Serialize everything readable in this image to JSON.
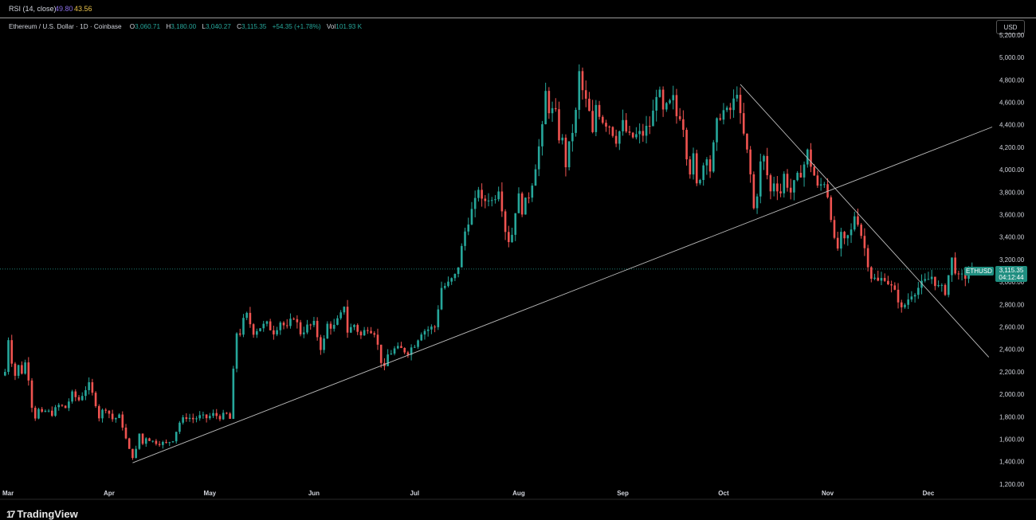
{
  "rsi": {
    "label": "RSI (14, close)",
    "value1": "49.80",
    "value2": "43.56",
    "color1": "#8a6ee6",
    "color2": "#e8c14a"
  },
  "legend": {
    "symbol": "Ethereum / U.S. Dollar · 1D · Coinbase",
    "open_k": "O",
    "open": "3,060.71",
    "high_k": "H",
    "high": "3,180.00",
    "low_k": "L",
    "low": "3,040.27",
    "close_k": "C",
    "close": "3,115.35",
    "change": "+54.35 (+1.78%)",
    "vol_k": "Vol",
    "vol": "101.93 K"
  },
  "currency_button": "USD",
  "price_tag": {
    "symbol": "ETHUSD",
    "price": "3,115.35",
    "countdown": "04:12:44"
  },
  "branding": {
    "logo": "17",
    "name": "TradingView"
  },
  "colors": {
    "up": "#26a69a",
    "down": "#ef5350",
    "trendline": "#bdbdbd",
    "background": "#000000"
  },
  "chart_data": {
    "type": "candlestick",
    "y_ticks": [
      "5,200.00",
      "5,000.00",
      "4,800.00",
      "4,600.00",
      "4,400.00",
      "4,200.00",
      "4,000.00",
      "3,800.00",
      "3,600.00",
      "3,400.00",
      "3,200.00",
      "3,000.00",
      "2,800.00",
      "2,600.00",
      "2,400.00",
      "2,200.00",
      "2,000.00",
      "1,800.00",
      "1,600.00",
      "1,400.00",
      "1,200.00"
    ],
    "ylim": [
      1150,
      5270
    ],
    "x_ticks": [
      {
        "label": "Mar",
        "day": -1
      },
      {
        "label": "Apr",
        "day": 31
      },
      {
        "label": "May",
        "day": 61
      },
      {
        "label": "Jun",
        "day": 92
      },
      {
        "label": "Jul",
        "day": 122
      },
      {
        "label": "Aug",
        "day": 153
      },
      {
        "label": "Sep",
        "day": 184
      },
      {
        "label": "Oct",
        "day": 214
      },
      {
        "label": "Nov",
        "day": 245
      },
      {
        "label": "Dec",
        "day": 275
      }
    ],
    "day_range": [
      -1.5,
      294
    ],
    "current_price": 3115.35,
    "trendlines": [
      {
        "from": [
          38,
          1390
        ],
        "to": [
          294,
          4380
        ]
      },
      {
        "from": [
          219,
          4760
        ],
        "to": [
          293,
          2330
        ]
      }
    ],
    "anchors": [
      [
        0,
        2200
      ],
      [
        1,
        2500
      ],
      [
        2,
        2300
      ],
      [
        3,
        2170
      ],
      [
        4,
        2250
      ],
      [
        5,
        2200
      ],
      [
        6,
        2280
      ],
      [
        7,
        2150
      ],
      [
        8,
        1900
      ],
      [
        9,
        1800
      ],
      [
        10,
        1860
      ],
      [
        11,
        1820
      ],
      [
        12,
        1850
      ],
      [
        14,
        1830
      ],
      [
        16,
        1900
      ],
      [
        18,
        1880
      ],
      [
        20,
        2000
      ],
      [
        22,
        1950
      ],
      [
        24,
        2050
      ],
      [
        25,
        2080
      ],
      [
        26,
        2000
      ],
      [
        27,
        1920
      ],
      [
        28,
        1800
      ],
      [
        29,
        1850
      ],
      [
        30,
        1880
      ],
      [
        32,
        1780
      ],
      [
        34,
        1800
      ],
      [
        35,
        1720
      ],
      [
        36,
        1600
      ],
      [
        37,
        1500
      ],
      [
        38,
        1450
      ],
      [
        39,
        1500
      ],
      [
        40,
        1650
      ],
      [
        41,
        1560
      ],
      [
        42,
        1620
      ],
      [
        44,
        1580
      ],
      [
        46,
        1570
      ],
      [
        48,
        1560
      ],
      [
        50,
        1600
      ],
      [
        52,
        1750
      ],
      [
        54,
        1800
      ],
      [
        56,
        1780
      ],
      [
        58,
        1800
      ],
      [
        60,
        1790
      ],
      [
        62,
        1820
      ],
      [
        64,
        1800
      ],
      [
        66,
        1820
      ],
      [
        67,
        1780
      ],
      [
        68,
        2200
      ],
      [
        69,
        2550
      ],
      [
        70,
        2550
      ],
      [
        71,
        2650
      ],
      [
        72,
        2700
      ],
      [
        74,
        2560
      ],
      [
        76,
        2600
      ],
      [
        78,
        2620
      ],
      [
        80,
        2560
      ],
      [
        82,
        2650
      ],
      [
        84,
        2580
      ],
      [
        86,
        2700
      ],
      [
        88,
        2550
      ],
      [
        90,
        2600
      ],
      [
        92,
        2620
      ],
      [
        94,
        2420
      ],
      [
        95,
        2480
      ],
      [
        96,
        2620
      ],
      [
        98,
        2600
      ],
      [
        100,
        2700
      ],
      [
        101,
        2800
      ],
      [
        102,
        2560
      ],
      [
        104,
        2620
      ],
      [
        106,
        2520
      ],
      [
        108,
        2600
      ],
      [
        110,
        2560
      ],
      [
        112,
        2300
      ],
      [
        113,
        2220
      ],
      [
        114,
        2350
      ],
      [
        116,
        2400
      ],
      [
        118,
        2400
      ],
      [
        120,
        2380
      ],
      [
        122,
        2450
      ],
      [
        124,
        2560
      ],
      [
        126,
        2580
      ],
      [
        128,
        2600
      ],
      [
        130,
        2950
      ],
      [
        132,
        2980
      ],
      [
        134,
        3050
      ],
      [
        135,
        3150
      ],
      [
        136,
        3300
      ],
      [
        137,
        3450
      ],
      [
        138,
        3560
      ],
      [
        140,
        3700
      ],
      [
        141,
        3850
      ],
      [
        142,
        3700
      ],
      [
        144,
        3760
      ],
      [
        145,
        3720
      ],
      [
        146,
        3780
      ],
      [
        147,
        3850
      ],
      [
        148,
        3680
      ],
      [
        149,
        3470
      ],
      [
        150,
        3380
      ],
      [
        151,
        3430
      ],
      [
        152,
        3650
      ],
      [
        153,
        3750
      ],
      [
        154,
        3650
      ],
      [
        155,
        3700
      ],
      [
        156,
        3780
      ],
      [
        157,
        3900
      ],
      [
        158,
        4050
      ],
      [
        159,
        4200
      ],
      [
        160,
        4350
      ],
      [
        161,
        4680
      ],
      [
        162,
        4550
      ],
      [
        164,
        4480
      ],
      [
        165,
        4300
      ],
      [
        166,
        4250
      ],
      [
        167,
        4050
      ],
      [
        168,
        4200
      ],
      [
        170,
        4500
      ],
      [
        171,
        4850
      ],
      [
        172,
        4700
      ],
      [
        174,
        4500
      ],
      [
        175,
        4300
      ],
      [
        176,
        4580
      ],
      [
        178,
        4450
      ],
      [
        180,
        4400
      ],
      [
        182,
        4280
      ],
      [
        184,
        4400
      ],
      [
        186,
        4280
      ],
      [
        188,
        4300
      ],
      [
        190,
        4320
      ],
      [
        192,
        4400
      ],
      [
        193,
        4500
      ],
      [
        194,
        4700
      ],
      [
        195,
        4650
      ],
      [
        196,
        4500
      ],
      [
        198,
        4580
      ],
      [
        199,
        4620
      ],
      [
        200,
        4480
      ],
      [
        201,
        4500
      ],
      [
        202,
        4400
      ],
      [
        203,
        4150
      ],
      [
        204,
        4000
      ],
      [
        205,
        4100
      ],
      [
        206,
        3850
      ],
      [
        207,
        3950
      ],
      [
        208,
        4050
      ],
      [
        209,
        4150
      ],
      [
        210,
        4000
      ],
      [
        211,
        4200
      ],
      [
        212,
        4400
      ],
      [
        213,
        4500
      ],
      [
        214,
        4520
      ],
      [
        215,
        4500
      ],
      [
        216,
        4530
      ],
      [
        217,
        4600
      ],
      [
        218,
        4720
      ],
      [
        219,
        4450
      ],
      [
        220,
        4300
      ],
      [
        221,
        4150
      ],
      [
        222,
        3950
      ],
      [
        223,
        3650
      ],
      [
        224,
        3800
      ],
      [
        225,
        4050
      ],
      [
        226,
        4100
      ],
      [
        227,
        3950
      ],
      [
        228,
        3800
      ],
      [
        229,
        3900
      ],
      [
        230,
        3850
      ],
      [
        231,
        3800
      ],
      [
        232,
        3950
      ],
      [
        234,
        3800
      ],
      [
        236,
        3920
      ],
      [
        238,
        4050
      ],
      [
        239,
        4150
      ],
      [
        240,
        4050
      ],
      [
        241,
        3950
      ],
      [
        242,
        3830
      ],
      [
        244,
        3900
      ],
      [
        245,
        3780
      ],
      [
        246,
        3600
      ],
      [
        247,
        3350
      ],
      [
        248,
        3300
      ],
      [
        249,
        3400
      ],
      [
        250,
        3350
      ],
      [
        252,
        3450
      ],
      [
        253,
        3600
      ],
      [
        254,
        3550
      ],
      [
        256,
        3300
      ],
      [
        258,
        3050
      ],
      [
        260,
        3000
      ],
      [
        262,
        3050
      ],
      [
        264,
        2950
      ],
      [
        266,
        2850
      ],
      [
        267,
        2750
      ],
      [
        268,
        2800
      ],
      [
        270,
        2900
      ],
      [
        272,
        2950
      ],
      [
        274,
        3000
      ],
      [
        276,
        3050
      ],
      [
        278,
        2950
      ],
      [
        280,
        2920
      ],
      [
        282,
        3200
      ],
      [
        284,
        3030
      ],
      [
        286,
        3050
      ],
      [
        288,
        3115.35
      ]
    ]
  }
}
